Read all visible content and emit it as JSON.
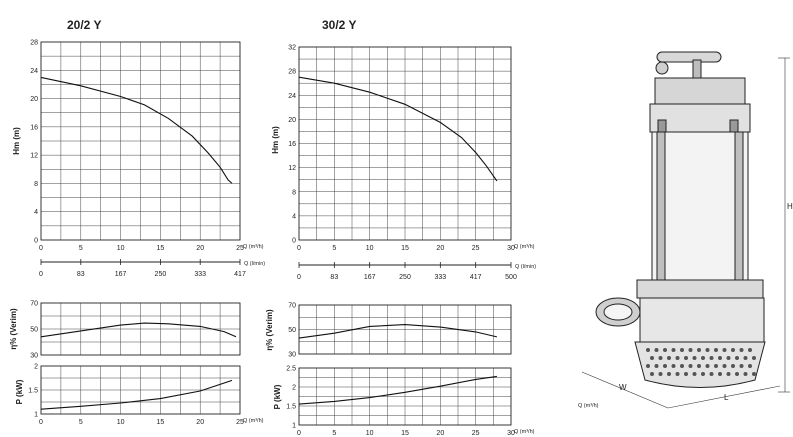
{
  "chart_data": [
    {
      "id": "c20h",
      "type": "line",
      "title": "20/2 Y",
      "ylabel": "Hm (m)",
      "xlabel": "Q (m³/h)",
      "xlim": [
        0,
        25
      ],
      "ylim": [
        0,
        28
      ],
      "xticks": [
        0,
        5,
        10,
        15,
        20,
        25
      ],
      "yticks": [
        0,
        4,
        8,
        12,
        16,
        20,
        24,
        28
      ],
      "grid": true,
      "series": [
        {
          "x": [
            0,
            5,
            10,
            13,
            16,
            19,
            21,
            22.5,
            23.5,
            24
          ],
          "y": [
            23,
            21.8,
            20.3,
            19.1,
            17.2,
            14.7,
            12.3,
            10.3,
            8.5,
            8
          ]
        }
      ]
    },
    {
      "id": "c20q",
      "type": "line",
      "secondary_unit": "Q (l/min)",
      "ticks": [
        "0",
        "83",
        "167",
        "250",
        "333",
        "417"
      ]
    },
    {
      "id": "c20n",
      "type": "line",
      "ylabel": "η% (Verim)",
      "xlim": [
        0,
        25
      ],
      "ylim": [
        30,
        70
      ],
      "yticks": [
        30,
        50,
        70
      ],
      "grid": true,
      "series": [
        {
          "x": [
            0,
            5,
            10,
            13,
            16,
            20,
            23,
            24.5
          ],
          "y": [
            44,
            48.5,
            53,
            54.5,
            54,
            52,
            48,
            44
          ]
        }
      ]
    },
    {
      "id": "c20p",
      "type": "line",
      "ylabel": "P (kW)",
      "xlabel": "Q (m³/h)",
      "xlim": [
        0,
        25
      ],
      "ylim": [
        1,
        2
      ],
      "xticks": [
        0,
        5,
        10,
        15,
        20,
        25
      ],
      "yticks": [
        1,
        1.5,
        2
      ],
      "grid": true,
      "series": [
        {
          "x": [
            0,
            5,
            10,
            15,
            20,
            24
          ],
          "y": [
            1.1,
            1.16,
            1.23,
            1.32,
            1.48,
            1.7
          ]
        }
      ]
    },
    {
      "id": "c30h",
      "type": "line",
      "title": "30/2 Y",
      "ylabel": "Hm (m)",
      "xlabel": "Q (m³/h)",
      "xlim": [
        0,
        30
      ],
      "ylim": [
        0,
        32
      ],
      "xticks": [
        0,
        5,
        10,
        15,
        20,
        25,
        30
      ],
      "yticks": [
        0,
        4,
        8,
        12,
        16,
        20,
        24,
        28,
        32
      ],
      "grid": true,
      "series": [
        {
          "x": [
            0,
            5,
            10,
            15,
            20,
            23,
            25,
            26.5,
            28
          ],
          "y": [
            27,
            26,
            24.5,
            22.5,
            19.5,
            17,
            14.5,
            12.3,
            9.8
          ]
        }
      ]
    },
    {
      "id": "c30q",
      "type": "line",
      "secondary_unit": "Q (l/min)",
      "ticks": [
        "0",
        "83",
        "167",
        "250",
        "333",
        "417",
        "500"
      ]
    },
    {
      "id": "c30n",
      "type": "line",
      "ylabel": "η% (Verim)",
      "xlim": [
        0,
        30
      ],
      "ylim": [
        30,
        70
      ],
      "yticks": [
        30,
        50,
        70
      ],
      "grid": true,
      "series": [
        {
          "x": [
            0,
            5,
            10,
            15,
            20,
            25,
            28
          ],
          "y": [
            43,
            47,
            52.5,
            54,
            52,
            48,
            44
          ]
        }
      ]
    },
    {
      "id": "c30p",
      "type": "line",
      "ylabel": "P (kW)",
      "xlabel": "Q (m³/h)",
      "xlim": [
        0,
        30
      ],
      "ylim": [
        1,
        2.5
      ],
      "xticks": [
        0,
        5,
        10,
        15,
        20,
        25,
        30
      ],
      "yticks": [
        1,
        1.5,
        2,
        2.5
      ],
      "grid": true,
      "series": [
        {
          "x": [
            0,
            5,
            10,
            15,
            20,
            25,
            28
          ],
          "y": [
            1.55,
            1.62,
            1.72,
            1.86,
            2.02,
            2.2,
            2.28
          ]
        }
      ]
    }
  ],
  "pump": {
    "dim_w": "W",
    "dim_l": "L",
    "dim_h": "H",
    "flow_note": "Q (m³/h)"
  }
}
